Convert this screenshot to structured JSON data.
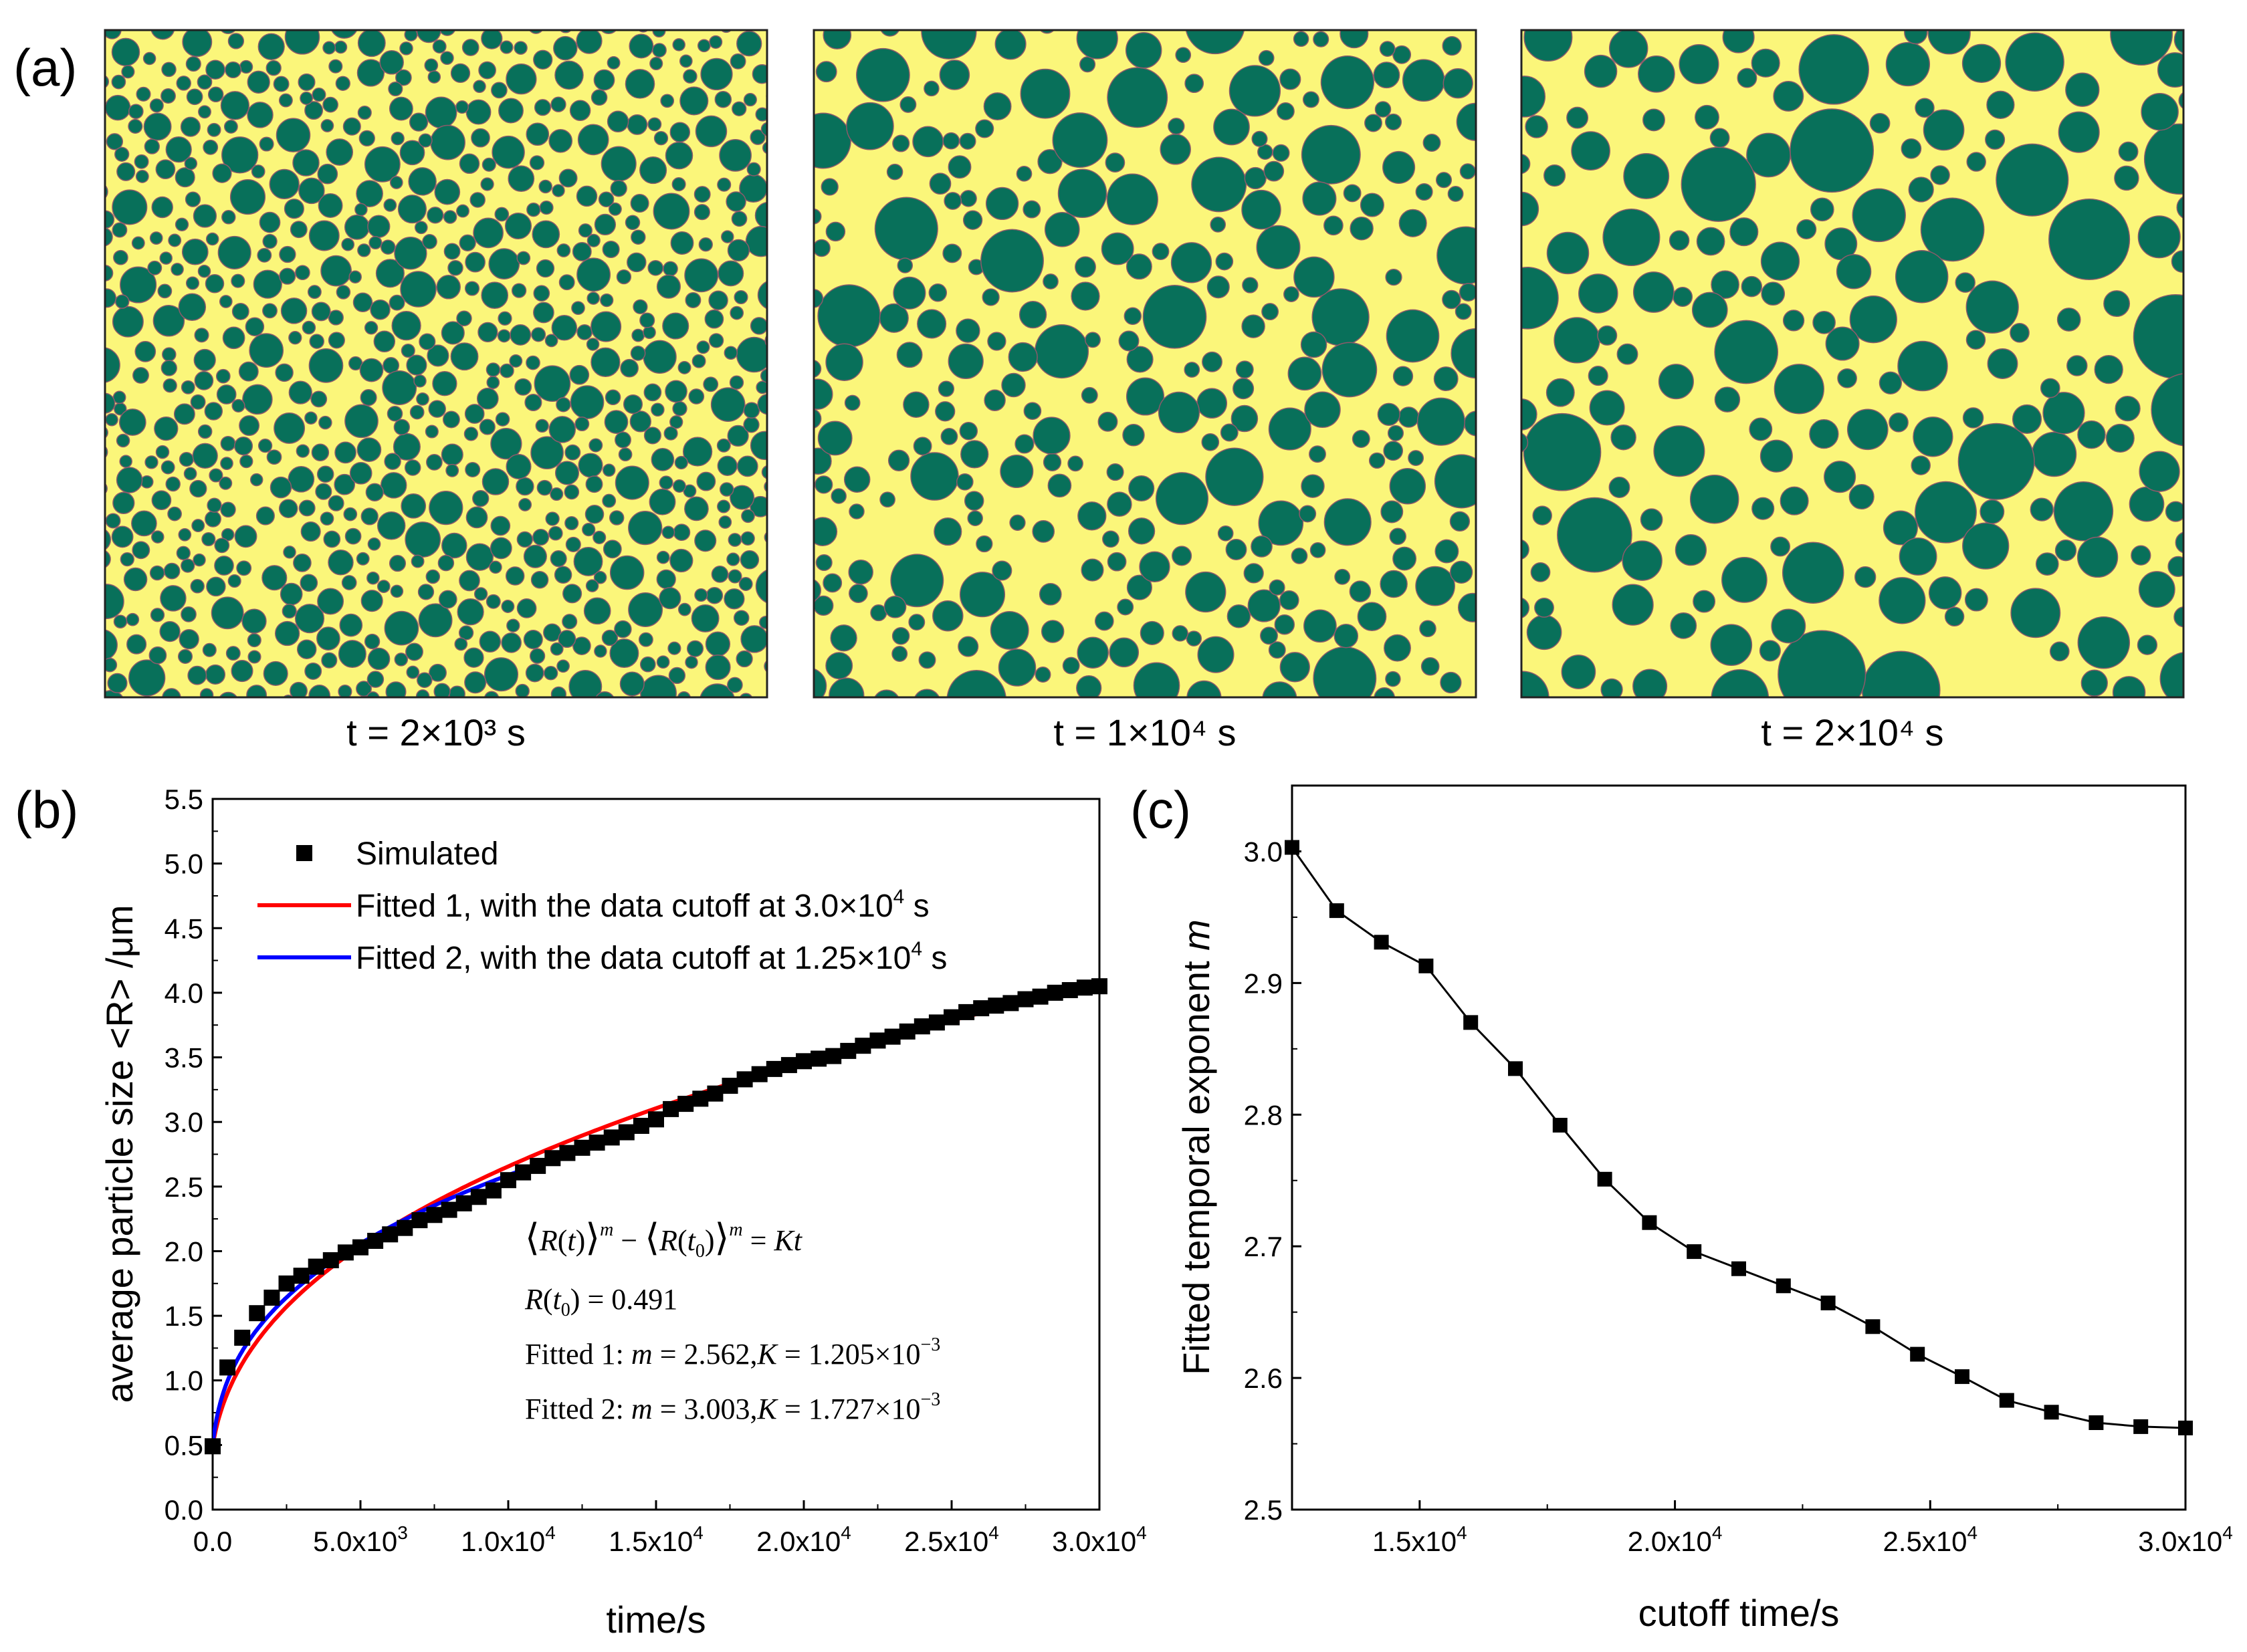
{
  "panel_a": {
    "label": "(a)",
    "captions": [
      "t = 2×10³ s",
      "t = 1×10⁴ s",
      "t = 2×10⁴ s"
    ],
    "colors": {
      "matrix": "#fbf67a",
      "particle": "#08705a",
      "boundary": "#8c5a6a"
    }
  },
  "chart_data": [
    {
      "panel": "(b)",
      "type": "scatter",
      "title": "",
      "xlabel": "time/s",
      "ylabel": "average particle size <R> /μm",
      "xlim": [
        0,
        30000
      ],
      "ylim": [
        0,
        5.5
      ],
      "xticks": [
        {
          "value": 0,
          "label": "0.0"
        },
        {
          "value": 5000,
          "label": "5.0x10",
          "exp": "3"
        },
        {
          "value": 10000,
          "label": "1.0x10",
          "exp": "4"
        },
        {
          "value": 15000,
          "label": "1.5x10",
          "exp": "4"
        },
        {
          "value": 20000,
          "label": "2.0x10",
          "exp": "4"
        },
        {
          "value": 25000,
          "label": "2.5x10",
          "exp": "4"
        },
        {
          "value": 30000,
          "label": "3.0x10",
          "exp": "4"
        }
      ],
      "yticks": [
        "0.0",
        "0.5",
        "1.0",
        "1.5",
        "2.0",
        "2.5",
        "3.0",
        "3.5",
        "4.0",
        "4.5",
        "5.0",
        "5.5"
      ],
      "legend": [
        {
          "label": "Simulated",
          "kind": "marker",
          "color": "#000000"
        },
        {
          "label": "Fitted 1, with the data cutoff at 3.0×10",
          "exp": "4",
          "unit": " s",
          "kind": "line",
          "color": "#ff0000"
        },
        {
          "label": "Fitted 2, with the data cutoff at 1.25×10",
          "exp": "4",
          "unit": " s",
          "kind": "line",
          "color": "#0000ff"
        }
      ],
      "series": [
        {
          "name": "Simulated",
          "x": [
            0,
            500,
            1000,
            1500,
            2000,
            2500,
            3000,
            3500,
            4000,
            4500,
            5000,
            5500,
            6000,
            6500,
            7000,
            7500,
            8000,
            8500,
            9000,
            9500,
            10000,
            10500,
            11000,
            11500,
            12000,
            12500,
            13000,
            13500,
            14000,
            14500,
            15000,
            15500,
            16000,
            16500,
            17000,
            17500,
            18000,
            18500,
            19000,
            19500,
            20000,
            20500,
            21000,
            21500,
            22000,
            22500,
            23000,
            23500,
            24000,
            24500,
            25000,
            25500,
            26000,
            26500,
            27000,
            27500,
            28000,
            28500,
            29000,
            29500,
            30000
          ],
          "y": [
            0.49,
            1.1,
            1.33,
            1.52,
            1.64,
            1.75,
            1.81,
            1.88,
            1.93,
            1.99,
            2.03,
            2.08,
            2.13,
            2.18,
            2.24,
            2.28,
            2.32,
            2.37,
            2.42,
            2.47,
            2.55,
            2.61,
            2.66,
            2.72,
            2.76,
            2.8,
            2.84,
            2.88,
            2.92,
            2.97,
            3.02,
            3.1,
            3.14,
            3.18,
            3.22,
            3.28,
            3.33,
            3.37,
            3.41,
            3.44,
            3.47,
            3.49,
            3.51,
            3.55,
            3.59,
            3.63,
            3.66,
            3.7,
            3.74,
            3.77,
            3.81,
            3.85,
            3.88,
            3.9,
            3.92,
            3.95,
            3.97,
            4.0,
            4.02,
            4.04,
            4.05
          ]
        },
        {
          "name": "Fitted 1",
          "kind": "fit",
          "m": 2.562,
          "K": 0.001205,
          "R0": 0.491,
          "t_max": 30000,
          "color": "#ff0000"
        },
        {
          "name": "Fitted 2",
          "kind": "fit",
          "m": 3.003,
          "K": 0.001727,
          "R0": 0.491,
          "t_max": 12500,
          "color": "#0000ff"
        }
      ],
      "annotations": {
        "r_t0": "= 0.491",
        "fit1_label": "Fitted 1: ",
        "fit2_label": "Fitted 2: ",
        "fit1_m": "= 2.562,",
        "fit1_k": "= 1.205×10",
        "fit1_exp": "−3",
        "fit2_m": "= 3.003,",
        "fit2_k": "= 1.727×10",
        "fit2_exp": "−3"
      }
    },
    {
      "panel": "(c)",
      "type": "line",
      "title": "",
      "xlabel": "cutoff time/s",
      "ylabel": "Fitted temporal exponent m",
      "xlim": [
        12500,
        30000
      ],
      "ylim": [
        2.5,
        3.05
      ],
      "xticks": [
        {
          "value": 15000,
          "label": "1.5x10",
          "exp": "4"
        },
        {
          "value": 20000,
          "label": "2.0x10",
          "exp": "4"
        },
        {
          "value": 25000,
          "label": "2.5x10",
          "exp": "4"
        },
        {
          "value": 30000,
          "label": "3.0x10",
          "exp": "4"
        }
      ],
      "yticks": [
        "2.5",
        "2.6",
        "2.7",
        "2.8",
        "2.9",
        "3.0"
      ],
      "series": [
        {
          "name": "Fitted temporal exponent m",
          "x": [
            12500,
            13375,
            14250,
            15125,
            16000,
            16875,
            17750,
            18625,
            19500,
            20375,
            21250,
            22125,
            23000,
            23875,
            24750,
            25625,
            26500,
            27375,
            28250,
            29125,
            30000
          ],
          "y": [
            3.003,
            2.955,
            2.931,
            2.913,
            2.87,
            2.835,
            2.792,
            2.751,
            2.718,
            2.696,
            2.683,
            2.67,
            2.657,
            2.639,
            2.618,
            2.601,
            2.583,
            2.574,
            2.566,
            2.563,
            2.562
          ]
        }
      ]
    }
  ]
}
